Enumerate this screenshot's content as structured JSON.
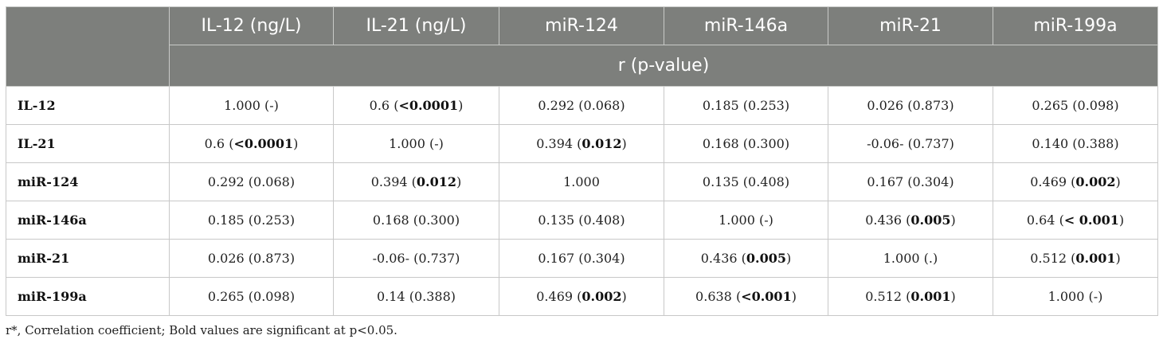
{
  "table": {
    "columns": [
      "IL-12 (ng/L)",
      "IL-21 (ng/L)",
      "miR-124",
      "miR-146a",
      "miR-21",
      "miR-199a"
    ],
    "subheader": "r (p-value)",
    "rows": [
      {
        "label": "IL-12",
        "cells": [
          {
            "r": "1.000",
            "p": "-",
            "bold": false
          },
          {
            "r": "0.6",
            "p": "<0.0001",
            "bold": true
          },
          {
            "r": "0.292",
            "p": "0.068",
            "bold": false
          },
          {
            "r": "0.185",
            "p": "0.253",
            "bold": false
          },
          {
            "r": "0.026",
            "p": "0.873",
            "bold": false
          },
          {
            "r": "0.265",
            "p": "0.098",
            "bold": false
          }
        ]
      },
      {
        "label": "IL-21",
        "cells": [
          {
            "r": "0.6",
            "p": "<0.0001",
            "bold": true
          },
          {
            "r": "1.000",
            "p": "-",
            "bold": false
          },
          {
            "r": "0.394",
            "p": "0.012",
            "bold": true
          },
          {
            "r": "0.168",
            "p": "0.300",
            "bold": false
          },
          {
            "r": "-0.06-",
            "p": "0.737",
            "bold": false
          },
          {
            "r": "0.140",
            "p": "0.388",
            "bold": false
          }
        ]
      },
      {
        "label": "miR-124",
        "cells": [
          {
            "r": "0.292",
            "p": "0.068",
            "bold": false
          },
          {
            "r": "0.394",
            "p": "0.012",
            "bold": true
          },
          {
            "r": "1.000",
            "p": "",
            "bold": false
          },
          {
            "r": "0.135",
            "p": "0.408",
            "bold": false
          },
          {
            "r": "0.167",
            "p": "0.304",
            "bold": false
          },
          {
            "r": "0.469",
            "p": "0.002",
            "bold": true
          }
        ]
      },
      {
        "label": "miR-146a",
        "cells": [
          {
            "r": "0.185",
            "p": "0.253",
            "bold": false
          },
          {
            "r": "0.168",
            "p": "0.300",
            "bold": false
          },
          {
            "r": "0.135",
            "p": "0.408",
            "bold": false
          },
          {
            "r": "1.000",
            "p": "-",
            "bold": false
          },
          {
            "r": "0.436",
            "p": "0.005",
            "bold": true
          },
          {
            "r": "0.64",
            "p": "< 0.001",
            "bold": true
          }
        ]
      },
      {
        "label": "miR-21",
        "cells": [
          {
            "r": "0.026",
            "p": "0.873",
            "bold": false
          },
          {
            "r": "-0.06-",
            "p": "0.737",
            "bold": false
          },
          {
            "r": "0.167",
            "p": "0.304",
            "bold": false
          },
          {
            "r": "0.436",
            "p": "0.005",
            "bold": true
          },
          {
            "r": "1.000",
            "p": ".",
            "bold": false
          },
          {
            "r": "0.512",
            "p": "0.001",
            "bold": true
          }
        ]
      },
      {
        "label": "miR-199a",
        "cells": [
          {
            "r": "0.265",
            "p": "0.098",
            "bold": false
          },
          {
            "r": "0.14",
            "p": "0.388",
            "bold": false
          },
          {
            "r": "0.469",
            "p": "0.002",
            "bold": true
          },
          {
            "r": "0.638",
            "p": "<0.001",
            "bold": true
          },
          {
            "r": "0.512",
            "p": "0.001",
            "bold": true
          },
          {
            "r": "1.000",
            "p": "-",
            "bold": false
          }
        ]
      }
    ]
  },
  "footnote": "r*, Correlation coefficient; Bold values are significant at p<0.05.",
  "colors": {
    "header_bg": "#7d7f7c",
    "header_text": "#ffffff",
    "grid": "#c8c8c8"
  }
}
